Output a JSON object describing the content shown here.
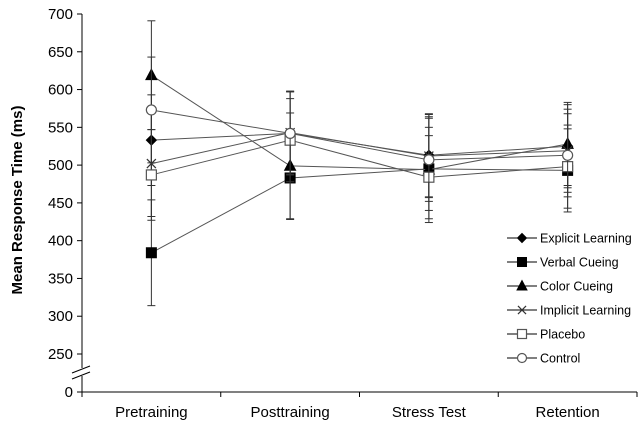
{
  "chart_data": {
    "type": "line",
    "title": "",
    "xlabel": "",
    "ylabel": "Mean Response Time (ms)",
    "ylim": [
      250,
      700
    ],
    "axis_break": true,
    "yticks": [
      "0",
      "250",
      "300",
      "350",
      "400",
      "450",
      "500",
      "550",
      "600",
      "650",
      "700"
    ],
    "categories": [
      "Pretraining",
      "Posttraining",
      "Stress Test",
      "Retention"
    ],
    "legend_position": "bottom-right",
    "series": [
      {
        "name": "Explicit Learning",
        "marker": "diamond-filled",
        "values": [
          533,
          542,
          513,
          525
        ],
        "err": [
          60,
          55,
          55,
          55
        ]
      },
      {
        "name": "Verbal Cueing",
        "marker": "square-filled",
        "values": [
          384,
          483,
          495,
          493
        ],
        "err": [
          70,
          55,
          55,
          55
        ]
      },
      {
        "name": "Color Cueing",
        "marker": "triangle-filled",
        "values": [
          619,
          499,
          494,
          528
        ],
        "err": [
          72,
          70,
          70,
          55
        ]
      },
      {
        "name": "Implicit Learning",
        "marker": "x",
        "values": [
          502,
          543,
          512,
          519
        ],
        "err": [
          70,
          55,
          55,
          55
        ]
      },
      {
        "name": "Placebo",
        "marker": "square-open",
        "values": [
          487,
          533,
          484,
          498
        ],
        "err": [
          60,
          55,
          55,
          55
        ]
      },
      {
        "name": "Control",
        "marker": "circle-open",
        "values": [
          573,
          542,
          507,
          513
        ],
        "err": [
          70,
          55,
          55,
          55
        ]
      }
    ]
  }
}
